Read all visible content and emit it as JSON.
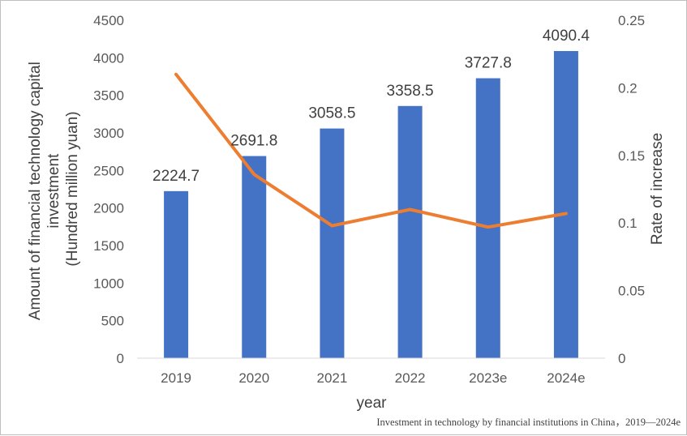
{
  "chart_data": {
    "type": "bar",
    "categories": [
      "2019",
      "2020",
      "2021",
      "2022",
      "2023e",
      "2024e"
    ],
    "series": [
      {
        "type": "bar",
        "axis": "left",
        "color": "#4472C4",
        "values": [
          2224.7,
          2691.8,
          3058.5,
          3358.5,
          3727.8,
          4090.4
        ],
        "data_labels": [
          "2224.7",
          "2691.8",
          "3058.5",
          "3358.5",
          "3727.8",
          "4090.4"
        ]
      },
      {
        "type": "line",
        "axis": "right",
        "color": "#ED7D31",
        "values": [
          0.21,
          0.136,
          0.098,
          0.11,
          0.097,
          0.107
        ]
      }
    ],
    "xlabel": "year",
    "ylabel_lines": [
      "Amount of financial technology capital",
      "investment",
      "(Hundred million yuan)"
    ],
    "y2label": "Rate of increase",
    "ylim": [
      0,
      4500
    ],
    "y_ticks": [
      "0",
      "500",
      "1000",
      "1500",
      "2000",
      "2500",
      "3000",
      "3500",
      "4000",
      "4500"
    ],
    "y2lim": [
      0,
      0.25
    ],
    "y2_ticks": [
      "0",
      "0.05",
      "0.1",
      "0.15",
      "0.2",
      "0.25"
    ],
    "grid": false,
    "legend": "none",
    "caption": "Investment in technology by financial institutions in China，2019—2024e"
  }
}
